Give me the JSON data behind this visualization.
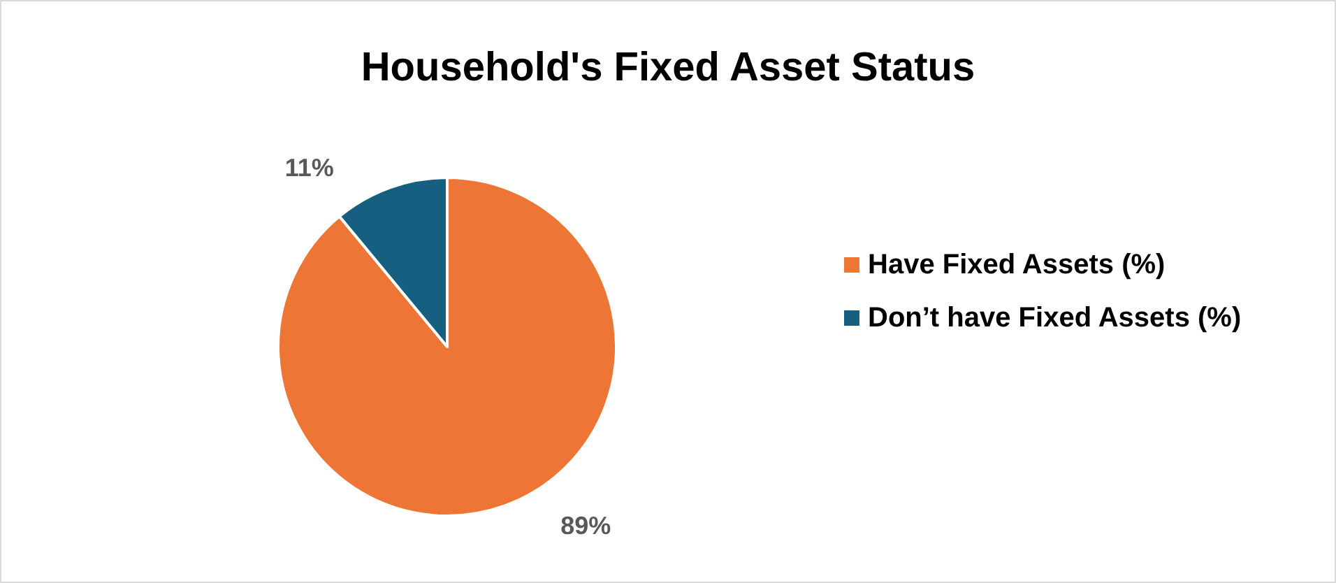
{
  "chart_data": {
    "type": "pie",
    "title": "Household's Fixed Asset Status",
    "categories": [
      "Have Fixed Assets (%)",
      "Don’t have Fixed Assets (%)"
    ],
    "values": [
      89,
      11
    ],
    "colors": [
      "#ed7535",
      "#165f80"
    ],
    "value_labels": [
      "89%",
      "11%"
    ],
    "legend": "right"
  }
}
